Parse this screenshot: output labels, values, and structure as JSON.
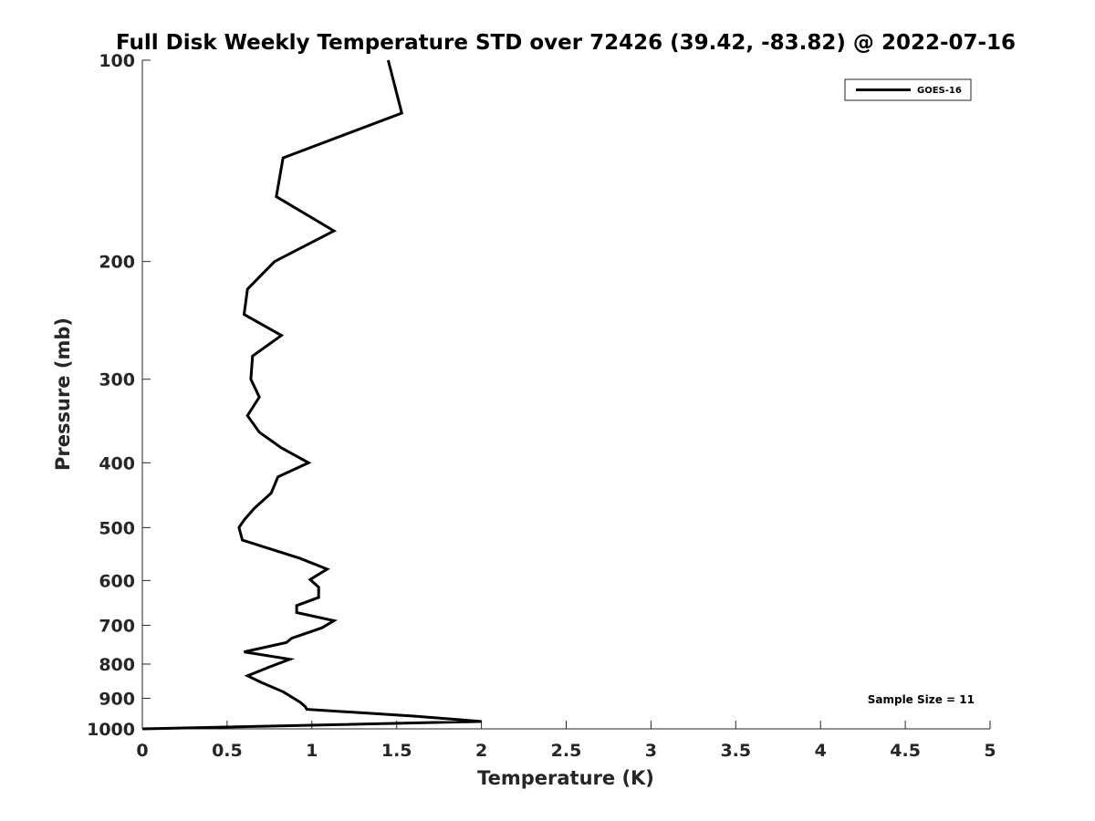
{
  "chart_data": {
    "type": "line",
    "title": "Full Disk Weekly Temperature STD over 72426 (39.42, -83.82) @ 2022-07-16",
    "xlabel": "Temperature (K)",
    "ylabel": "Pressure (mb)",
    "xlim": [
      0,
      5
    ],
    "ylim": [
      100,
      1000
    ],
    "y_scale": "log",
    "y_reversed": true,
    "x_ticks": [
      "0",
      "0.5",
      "1",
      "1.5",
      "2",
      "2.5",
      "3",
      "3.5",
      "4",
      "4.5",
      "5"
    ],
    "x_tick_values": [
      0,
      0.5,
      1,
      1.5,
      2,
      2.5,
      3,
      3.5,
      4,
      4.5,
      5
    ],
    "y_ticks": [
      "100",
      "200",
      "300",
      "400",
      "500",
      "600",
      "700",
      "800",
      "900",
      "1000"
    ],
    "y_tick_values": [
      100,
      200,
      300,
      400,
      500,
      600,
      700,
      800,
      900,
      1000
    ],
    "grid": false,
    "legend_position": "top-right",
    "annotation": "Sample Size = 11",
    "series": [
      {
        "name": "GOES-16",
        "color": "#000000",
        "points": [
          [
            1.45,
            100
          ],
          [
            1.53,
            120
          ],
          [
            0.83,
            140
          ],
          [
            0.79,
            160
          ],
          [
            1.13,
            180
          ],
          [
            0.78,
            200
          ],
          [
            0.62,
            220
          ],
          [
            0.6,
            240
          ],
          [
            0.82,
            258
          ],
          [
            0.65,
            277
          ],
          [
            0.64,
            300
          ],
          [
            0.69,
            319
          ],
          [
            0.62,
            340
          ],
          [
            0.69,
            360
          ],
          [
            0.82,
            380
          ],
          [
            0.98,
            400
          ],
          [
            0.8,
            420
          ],
          [
            0.76,
            444
          ],
          [
            0.66,
            468
          ],
          [
            0.6,
            487
          ],
          [
            0.57,
            500
          ],
          [
            0.59,
            522
          ],
          [
            0.93,
            556
          ],
          [
            1.09,
            577
          ],
          [
            0.99,
            598
          ],
          [
            1.04,
            614
          ],
          [
            1.04,
            636
          ],
          [
            0.91,
            654
          ],
          [
            0.91,
            670
          ],
          [
            1.13,
            689
          ],
          [
            1.06,
            706
          ],
          [
            0.88,
            732
          ],
          [
            0.85,
            743
          ],
          [
            0.6,
            767
          ],
          [
            0.87,
            787
          ],
          [
            0.75,
            808
          ],
          [
            0.62,
            833
          ],
          [
            0.7,
            852
          ],
          [
            0.83,
            880
          ],
          [
            0.93,
            912
          ],
          [
            0.96,
            926
          ],
          [
            0.97,
            935
          ],
          [
            1.6,
            957
          ],
          [
            2.0,
            975
          ],
          [
            0.0,
            1000
          ]
        ]
      }
    ]
  }
}
